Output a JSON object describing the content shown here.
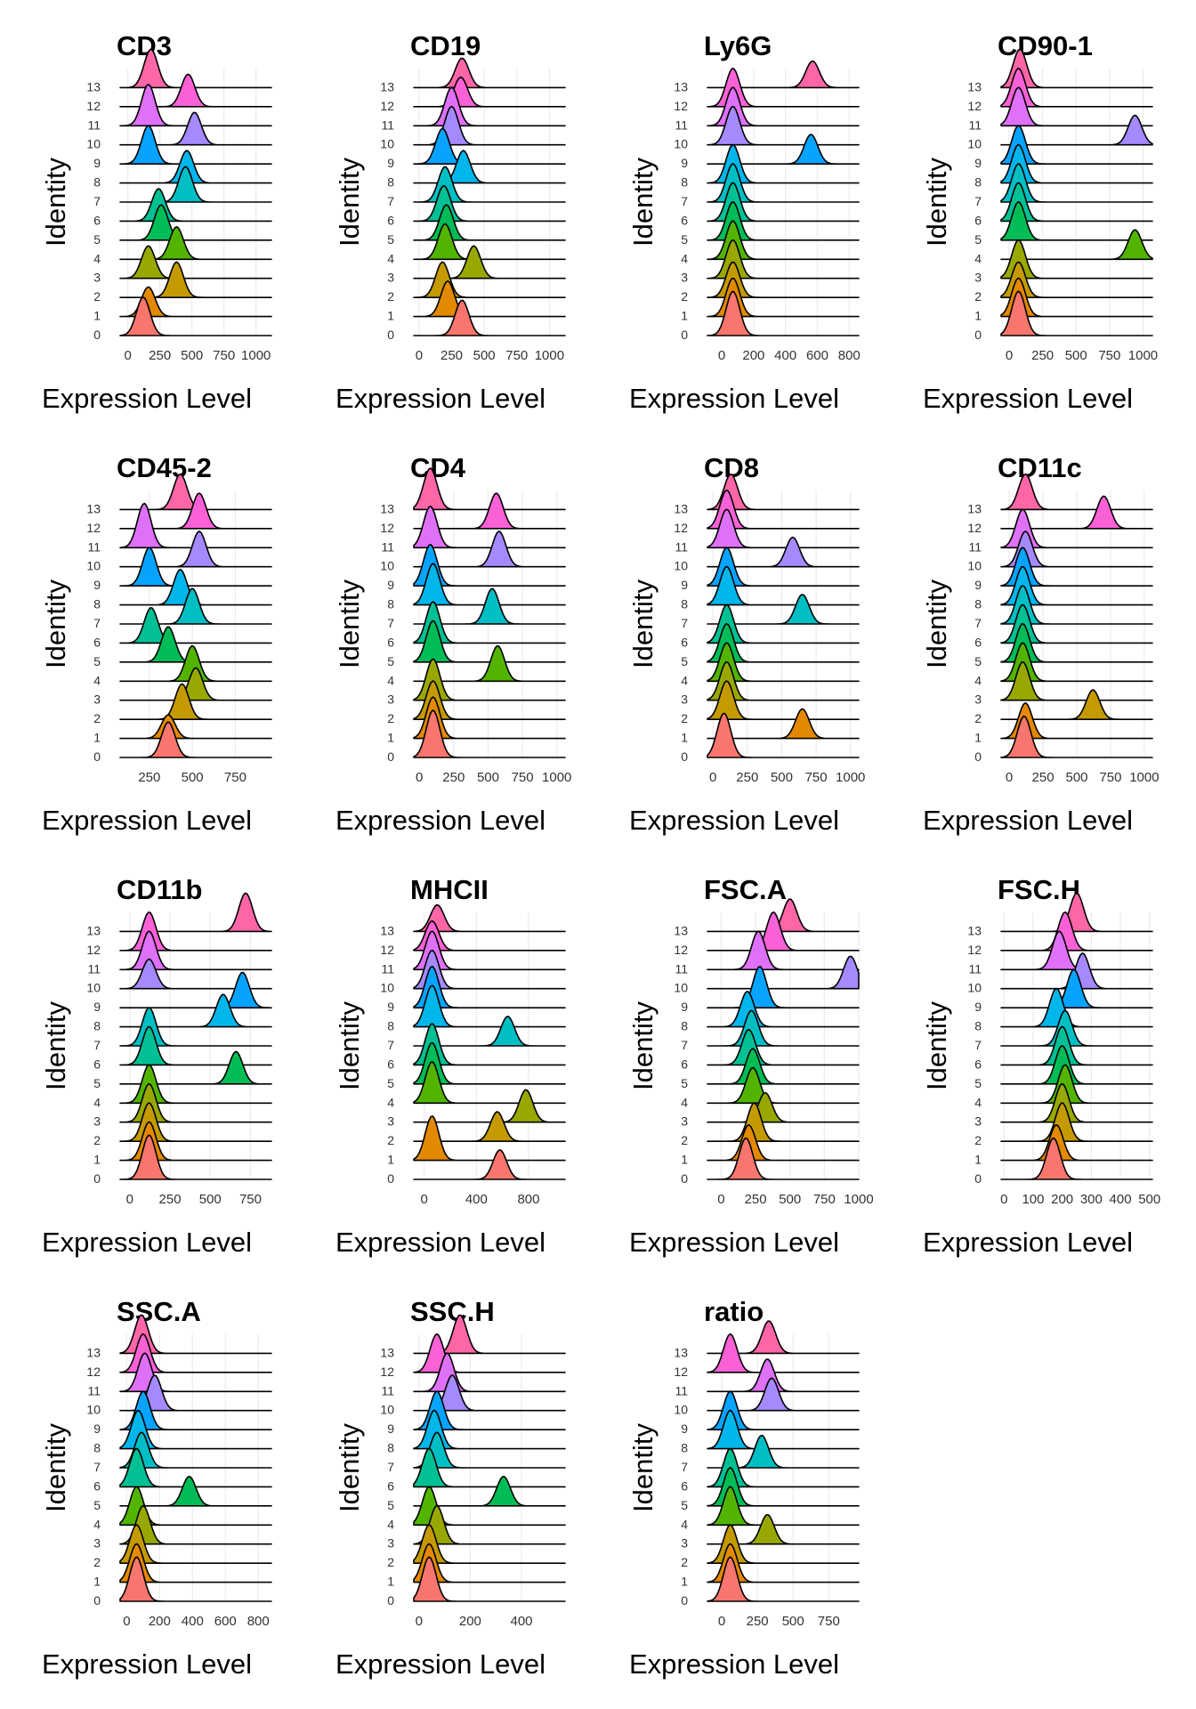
{
  "figure": {
    "x_axis_title": "Expression Level",
    "y_axis_title": "Identity",
    "identities": [
      "0",
      "1",
      "2",
      "3",
      "4",
      "5",
      "6",
      "7",
      "8",
      "9",
      "10",
      "11",
      "12",
      "13"
    ],
    "identity_colors": [
      "#F8766D",
      "#E38900",
      "#C49A00",
      "#99A800",
      "#53B400",
      "#00BC56",
      "#00C094",
      "#00BFC4",
      "#00B6EB",
      "#06A4FF",
      "#A58AFF",
      "#DF70F8",
      "#FB61D7",
      "#FF66A8"
    ]
  },
  "chart_data": [
    {
      "type": "ridgeline",
      "title": "CD3",
      "xlabel": "Expression Level",
      "ylabel": "Identity",
      "xlim": [
        -60,
        1120
      ],
      "xticks": [
        {
          "value": 0,
          "label": "0"
        },
        {
          "value": 250,
          "label": "250"
        },
        {
          "value": 500,
          "label": "500"
        },
        {
          "value": 750,
          "label": "750"
        },
        {
          "value": 1000,
          "label": "1000"
        }
      ],
      "peaks": [
        120,
        160,
        380,
        160,
        380,
        260,
        240,
        450,
        460,
        160,
        520,
        160,
        470,
        180
      ],
      "peak_heights": [
        1.3,
        1.0,
        1.2,
        1.1,
        1.1,
        1.2,
        1.1,
        1.2,
        1.1,
        1.3,
        1.1,
        1.4,
        1.1,
        1.3
      ]
    },
    {
      "type": "ridgeline",
      "title": "CD19",
      "xlabel": "Expression Level",
      "ylabel": "Identity",
      "xlim": [
        -40,
        1120
      ],
      "xticks": [
        {
          "value": 0,
          "label": "0"
        },
        {
          "value": 250,
          "label": "250"
        },
        {
          "value": 500,
          "label": "500"
        },
        {
          "value": 750,
          "label": "750"
        },
        {
          "value": 1000,
          "label": "1000"
        }
      ],
      "peaks": [
        330,
        220,
        180,
        420,
        200,
        210,
        190,
        200,
        340,
        180,
        250,
        250,
        320,
        330
      ],
      "peak_heights": [
        1.2,
        1.2,
        1.2,
        1.1,
        1.2,
        1.2,
        1.2,
        1.2,
        1.1,
        1.2,
        1.3,
        1.3,
        1.0,
        1.0
      ]
    },
    {
      "type": "ridgeline",
      "title": "Ly6G",
      "xlabel": "Expression Level",
      "ylabel": "Identity",
      "xlim": [
        -90,
        860
      ],
      "xticks": [
        {
          "value": 0,
          "label": "0"
        },
        {
          "value": 200,
          "label": "200"
        },
        {
          "value": 400,
          "label": "400"
        },
        {
          "value": 600,
          "label": "600"
        },
        {
          "value": 800,
          "label": "800"
        }
      ],
      "peaks": [
        70,
        70,
        70,
        70,
        70,
        70,
        70,
        70,
        70,
        560,
        70,
        70,
        70,
        570
      ],
      "peak_heights": [
        1.5,
        1.3,
        1.2,
        1.3,
        1.3,
        1.3,
        1.3,
        1.3,
        1.3,
        1.0,
        1.3,
        1.3,
        1.3,
        0.9
      ]
    },
    {
      "type": "ridgeline",
      "title": "CD90-1",
      "xlabel": "Expression Level",
      "ylabel": "Identity",
      "xlim": [
        -60,
        1070
      ],
      "xticks": [
        {
          "value": 0,
          "label": "0"
        },
        {
          "value": 250,
          "label": "250"
        },
        {
          "value": 500,
          "label": "500"
        },
        {
          "value": 750,
          "label": "750"
        },
        {
          "value": 1000,
          "label": "1000"
        }
      ],
      "peaks": [
        70,
        70,
        70,
        70,
        940,
        70,
        70,
        70,
        70,
        70,
        940,
        70,
        70,
        80
      ],
      "peak_heights": [
        1.5,
        1.3,
        1.2,
        1.3,
        1.0,
        1.3,
        1.3,
        1.3,
        1.3,
        1.3,
        1.0,
        1.3,
        1.3,
        1.3
      ]
    },
    {
      "type": "ridgeline",
      "title": "CD45-2",
      "xlabel": "Expression Level",
      "ylabel": "Identity",
      "xlim": [
        80,
        960
      ],
      "xticks": [
        {
          "value": 250,
          "label": "250"
        },
        {
          "value": 500,
          "label": "500"
        },
        {
          "value": 750,
          "label": "750"
        }
      ],
      "peaks": [
        360,
        360,
        440,
        520,
        500,
        360,
        260,
        500,
        430,
        250,
        540,
        220,
        540,
        430
      ],
      "peak_heights": [
        1.2,
        0.8,
        1.2,
        1.1,
        1.2,
        1.2,
        1.2,
        1.2,
        1.2,
        1.3,
        1.2,
        1.5,
        1.2,
        1.2
      ]
    },
    {
      "type": "ridgeline",
      "title": "CD4",
      "xlabel": "Expression Level",
      "ylabel": "Identity",
      "xlim": [
        -40,
        1060
      ],
      "xticks": [
        {
          "value": 0,
          "label": "0"
        },
        {
          "value": 250,
          "label": "250"
        },
        {
          "value": 500,
          "label": "500"
        },
        {
          "value": 750,
          "label": "750"
        },
        {
          "value": 1000,
          "label": "1000"
        }
      ],
      "peaks": [
        100,
        100,
        100,
        100,
        570,
        100,
        100,
        530,
        100,
        80,
        580,
        80,
        560,
        80
      ],
      "peak_heights": [
        1.6,
        1.4,
        1.3,
        1.4,
        1.2,
        1.4,
        1.4,
        1.2,
        1.4,
        1.4,
        1.2,
        1.4,
        1.2,
        1.4
      ]
    },
    {
      "type": "ridgeline",
      "title": "CD8",
      "xlabel": "Expression Level",
      "ylabel": "Identity",
      "xlim": [
        -40,
        1060
      ],
      "xticks": [
        {
          "value": 0,
          "label": "0"
        },
        {
          "value": 250,
          "label": "250"
        },
        {
          "value": 500,
          "label": "500"
        },
        {
          "value": 750,
          "label": "750"
        },
        {
          "value": 1000,
          "label": "1000"
        }
      ],
      "peaks": [
        80,
        650,
        100,
        100,
        100,
        100,
        100,
        650,
        100,
        100,
        580,
        100,
        100,
        130
      ],
      "peak_heights": [
        1.5,
        1.0,
        1.3,
        1.3,
        1.3,
        1.3,
        1.3,
        1.0,
        1.3,
        1.3,
        1.0,
        1.3,
        1.3,
        1.2
      ]
    },
    {
      "type": "ridgeline",
      "title": "CD11c",
      "xlabel": "Expression Level",
      "ylabel": "Identity",
      "xlim": [
        -60,
        1060
      ],
      "xticks": [
        {
          "value": 0,
          "label": "0"
        },
        {
          "value": 250,
          "label": "250"
        },
        {
          "value": 500,
          "label": "500"
        },
        {
          "value": 750,
          "label": "750"
        },
        {
          "value": 1000,
          "label": "1000"
        }
      ],
      "peaks": [
        110,
        120,
        620,
        100,
        100,
        100,
        100,
        100,
        100,
        100,
        120,
        100,
        700,
        120
      ],
      "peak_heights": [
        1.4,
        1.2,
        1.0,
        1.3,
        1.3,
        1.3,
        1.3,
        1.3,
        1.3,
        1.3,
        1.2,
        1.3,
        1.1,
        1.2
      ]
    },
    {
      "type": "ridgeline",
      "title": "CD11b",
      "xlabel": "Expression Level",
      "ylabel": "Identity",
      "xlim": [
        -60,
        880
      ],
      "xticks": [
        {
          "value": 0,
          "label": "0"
        },
        {
          "value": 250,
          "label": "250"
        },
        {
          "value": 500,
          "label": "500"
        },
        {
          "value": 750,
          "label": "750"
        }
      ],
      "peaks": [
        120,
        120,
        120,
        120,
        120,
        660,
        120,
        120,
        580,
        700,
        120,
        120,
        120,
        720
      ],
      "peak_heights": [
        1.5,
        1.3,
        1.3,
        1.3,
        1.3,
        1.1,
        1.3,
        1.3,
        1.1,
        1.2,
        1.0,
        1.3,
        1.3,
        1.3
      ]
    },
    {
      "type": "ridgeline",
      "title": "MHCII",
      "xlabel": "Expression Level",
      "ylabel": "Identity",
      "xlim": [
        -80,
        1080
      ],
      "xticks": [
        {
          "value": 0,
          "label": "0"
        },
        {
          "value": 400,
          "label": "400"
        },
        {
          "value": 800,
          "label": "800"
        }
      ],
      "peaks": [
        580,
        60,
        560,
        780,
        60,
        60,
        60,
        640,
        60,
        60,
        60,
        60,
        60,
        100
      ],
      "peak_heights": [
        1.0,
        1.5,
        1.0,
        1.1,
        1.4,
        1.4,
        1.4,
        1.0,
        1.4,
        1.4,
        1.3,
        1.3,
        1.0,
        0.9
      ]
    },
    {
      "type": "ridgeline",
      "title": "FSC.A",
      "xlabel": "Expression Level",
      "ylabel": "Identity",
      "xlim": [
        -100,
        1000
      ],
      "xticks": [
        {
          "value": 0,
          "label": "0"
        },
        {
          "value": 250,
          "label": "250"
        },
        {
          "value": 500,
          "label": "500"
        },
        {
          "value": 750,
          "label": "750"
        },
        {
          "value": 1000,
          "label": "1000"
        }
      ],
      "peaks": [
        180,
        200,
        240,
        320,
        230,
        230,
        200,
        220,
        190,
        280,
        940,
        270,
        380,
        500
      ],
      "peak_heights": [
        1.4,
        1.2,
        1.3,
        1.0,
        1.2,
        1.2,
        1.2,
        1.2,
        1.2,
        1.4,
        1.1,
        1.3,
        1.3,
        1.1
      ]
    },
    {
      "type": "ridgeline",
      "title": "FSC.H",
      "xlabel": "Expression Level",
      "ylabel": "Identity",
      "xlim": [
        -10,
        510
      ],
      "xticks": [
        {
          "value": 0,
          "label": "0"
        },
        {
          "value": 100,
          "label": "100"
        },
        {
          "value": 200,
          "label": "200"
        },
        {
          "value": 300,
          "label": "300"
        },
        {
          "value": 400,
          "label": "400"
        },
        {
          "value": 500,
          "label": "500"
        }
      ],
      "peaks": [
        170,
        180,
        200,
        200,
        210,
        200,
        200,
        210,
        180,
        240,
        270,
        190,
        210,
        250
      ],
      "peak_heights": [
        1.4,
        1.2,
        1.3,
        1.3,
        1.3,
        1.3,
        1.3,
        1.2,
        1.3,
        1.3,
        1.2,
        1.3,
        1.3,
        1.3
      ]
    },
    {
      "type": "ridgeline",
      "title": "SSC.A",
      "xlabel": "Expression Level",
      "ylabel": "Identity",
      "xlim": [
        -40,
        880
      ],
      "xticks": [
        {
          "value": 0,
          "label": "0"
        },
        {
          "value": 200,
          "label": "200"
        },
        {
          "value": 400,
          "label": "400"
        },
        {
          "value": 600,
          "label": "600"
        },
        {
          "value": 800,
          "label": "800"
        }
      ],
      "peaks": [
        60,
        60,
        60,
        100,
        60,
        380,
        60,
        90,
        70,
        100,
        170,
        110,
        100,
        90
      ],
      "peak_heights": [
        1.5,
        1.3,
        1.3,
        1.3,
        1.3,
        1.0,
        1.3,
        1.2,
        1.3,
        1.3,
        1.2,
        1.3,
        1.3,
        1.3
      ]
    },
    {
      "type": "ridgeline",
      "title": "SSC.H",
      "xlabel": "Expression Level",
      "ylabel": "Identity",
      "xlim": [
        -20,
        570
      ],
      "xticks": [
        {
          "value": 0,
          "label": "0"
        },
        {
          "value": 200,
          "label": "200"
        },
        {
          "value": 400,
          "label": "400"
        }
      ],
      "peaks": [
        40,
        40,
        40,
        70,
        40,
        330,
        40,
        70,
        60,
        70,
        130,
        110,
        70,
        160
      ],
      "peak_heights": [
        1.5,
        1.3,
        1.3,
        1.3,
        1.3,
        1.0,
        1.3,
        1.2,
        1.3,
        1.3,
        1.2,
        1.3,
        1.3,
        1.3
      ]
    },
    {
      "type": "ridgeline",
      "title": "ratio",
      "xlabel": "Expression Level",
      "ylabel": "Identity",
      "xlim": [
        -100,
        960
      ],
      "xticks": [
        {
          "value": 0,
          "label": "0"
        },
        {
          "value": 250,
          "label": "250"
        },
        {
          "value": 500,
          "label": "500"
        },
        {
          "value": 750,
          "label": "750"
        }
      ],
      "peaks": [
        60,
        60,
        60,
        320,
        60,
        60,
        60,
        280,
        60,
        60,
        350,
        320,
        60,
        330
      ],
      "peak_heights": [
        1.5,
        1.3,
        1.3,
        1.0,
        1.3,
        1.3,
        1.3,
        1.1,
        1.3,
        1.3,
        1.1,
        1.1,
        1.3,
        1.1
      ]
    }
  ]
}
